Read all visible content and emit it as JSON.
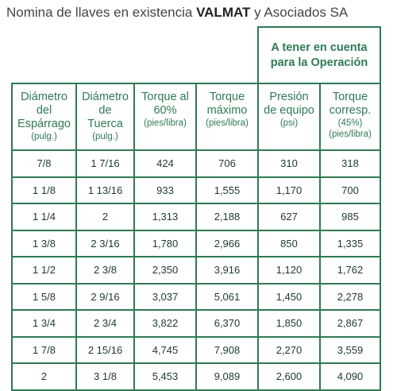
{
  "title": {
    "prefix": "Nomina de llaves en existencia ",
    "brand": "VALMAT",
    "suffix": " y Asociados SA"
  },
  "group_header": {
    "line1": "A tener en cuenta",
    "line2": "para la Operación"
  },
  "columns": [
    {
      "lines": [
        "Diámetro",
        "del",
        "Espárrago"
      ],
      "unit": "(pulg.)"
    },
    {
      "lines": [
        "Diámetro",
        "de",
        "Tuerca"
      ],
      "unit": "(pulg.)"
    },
    {
      "lines": [
        "Torque al",
        "60%"
      ],
      "unit": "(pies/libra)"
    },
    {
      "lines": [
        "Torque",
        "máximo"
      ],
      "unit": "(pies/libra)"
    },
    {
      "lines": [
        "Presión",
        "de equipo"
      ],
      "unit": "(psi)"
    },
    {
      "lines": [
        "Torque",
        "corresp."
      ],
      "unit": "(45%)",
      "unit2": "(pies/libra)"
    }
  ],
  "rows": [
    [
      "7/8",
      "1 7/16",
      "424",
      "706",
      "310",
      "318"
    ],
    [
      "1 1/8",
      "1 13/16",
      "933",
      "1,555",
      "1,170",
      "700"
    ],
    [
      "1 1/4",
      "2",
      "1,313",
      "2,188",
      "627",
      "985"
    ],
    [
      "1 3/8",
      "2 3/16",
      "1,780",
      "2,966",
      "850",
      "1,335"
    ],
    [
      "1 1/2",
      "2 3/8",
      "2,350",
      "3,916",
      "1,120",
      "1,762"
    ],
    [
      "1 5/8",
      "2 9/16",
      "3,037",
      "5,061",
      "1,450",
      "2,278"
    ],
    [
      "1 3/4",
      "2 3/4",
      "3,822",
      "6,370",
      "1,850",
      "2,867"
    ],
    [
      "1 7/8",
      "2 15/16",
      "4,745",
      "7,908",
      "2,270",
      "3,559"
    ],
    [
      "2",
      "3 1/8",
      "5,453",
      "9,089",
      "2,600",
      "4,090"
    ]
  ],
  "colors": {
    "border": "#2f7a55",
    "header_text": "#2f7a55",
    "body_text": "#1e3a2a"
  }
}
